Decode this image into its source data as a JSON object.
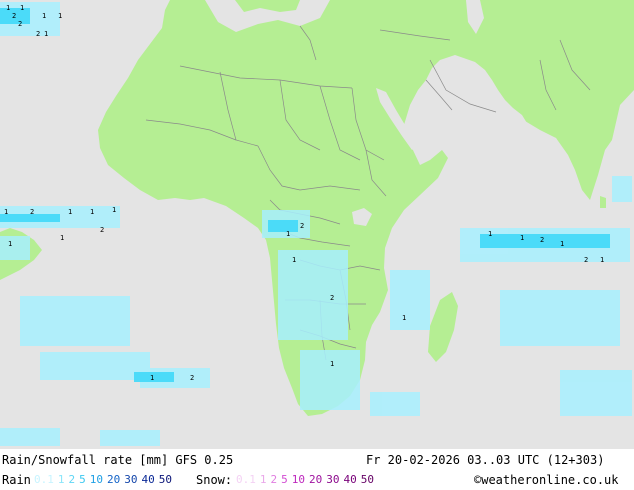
{
  "map": {
    "colors": {
      "sea": "#e4e4e4",
      "land": "#b5ee93",
      "border": "#8a8a8a",
      "rain_light": "#a8f0ff",
      "rain_mid": "#40d8f8"
    },
    "rain_labels": [
      {
        "text": "1"
      },
      {
        "text": "2"
      },
      {
        "text": "1"
      },
      {
        "text": "2"
      },
      {
        "text": "1"
      },
      {
        "text": "1"
      },
      {
        "text": "2"
      },
      {
        "text": "1"
      },
      {
        "text": "1"
      },
      {
        "text": "2"
      },
      {
        "text": "1"
      },
      {
        "text": "1"
      },
      {
        "text": "1"
      },
      {
        "text": "2"
      },
      {
        "text": "1"
      },
      {
        "text": "1"
      },
      {
        "text": "2"
      },
      {
        "text": "1"
      },
      {
        "text": "1"
      },
      {
        "text": "2"
      },
      {
        "text": "1"
      },
      {
        "text": "1"
      },
      {
        "text": "1"
      },
      {
        "text": "2"
      },
      {
        "text": "1"
      },
      {
        "text": "2"
      },
      {
        "text": "1"
      },
      {
        "text": "1"
      },
      {
        "text": "2"
      },
      {
        "text": "1"
      }
    ]
  },
  "footer": {
    "title": "Rain/Snowfall rate [mm] GFS 0.25",
    "datetime": "Fr 20-02-2026 03..03 UTC (12+303)",
    "rain_label": "Rain",
    "rain_legend": [
      {
        "text": "0.1",
        "color": "#c8f4ff"
      },
      {
        "text": "1",
        "color": "#8ce6fa"
      },
      {
        "text": "2",
        "color": "#5fd6f5"
      },
      {
        "text": "5",
        "color": "#3cc8f0"
      },
      {
        "text": "10",
        "color": "#1ea0e6"
      },
      {
        "text": "20",
        "color": "#1464c8"
      },
      {
        "text": "30",
        "color": "#1446aa"
      },
      {
        "text": "40",
        "color": "#0a2896"
      },
      {
        "text": "50",
        "color": "#0a1478"
      }
    ],
    "snow_label": "Snow:",
    "snow_legend": [
      {
        "text": "0.1",
        "color": "#f4d2f4"
      },
      {
        "text": "1",
        "color": "#eaa8ea"
      },
      {
        "text": "2",
        "color": "#e07ee0"
      },
      {
        "text": "5",
        "color": "#d24cd2"
      },
      {
        "text": "10",
        "color": "#be28be"
      },
      {
        "text": "20",
        "color": "#a014a0"
      },
      {
        "text": "30",
        "color": "#8c0a8c"
      },
      {
        "text": "40",
        "color": "#780078"
      },
      {
        "text": "50",
        "color": "#640064"
      }
    ],
    "credit": "©weatheronline.co.uk"
  }
}
